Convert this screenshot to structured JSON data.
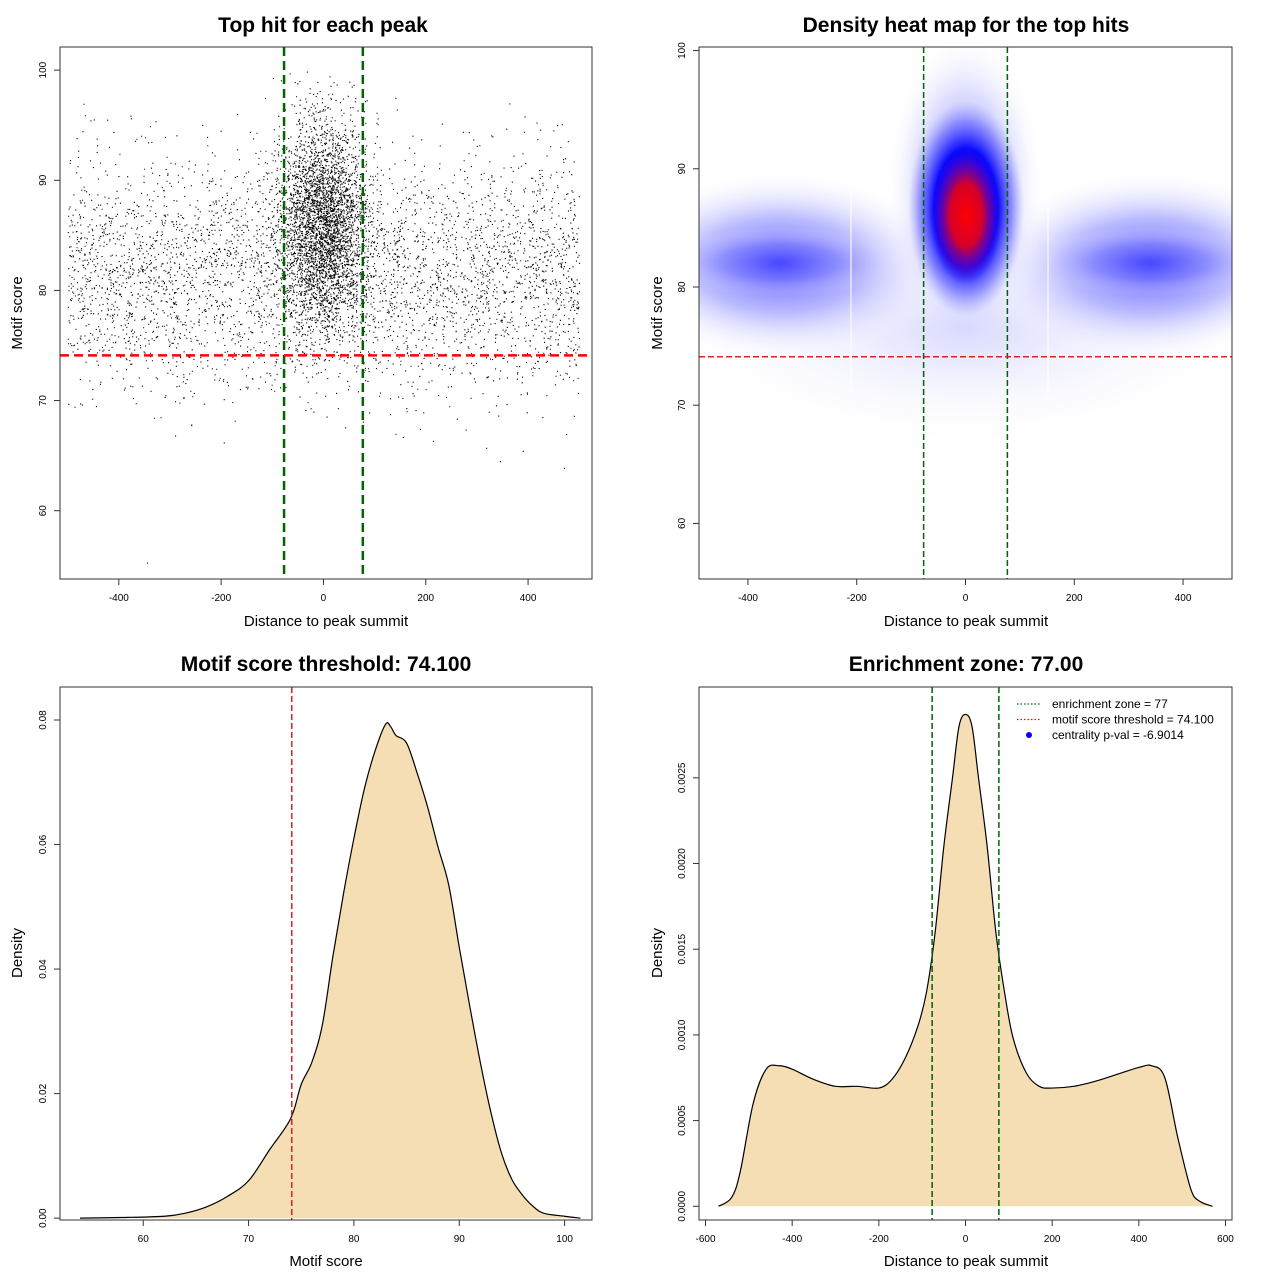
{
  "chart_data": [
    {
      "id": "scatter",
      "type": "scatter",
      "title": "Top hit for each peak",
      "xlabel": "Distance to peak summit",
      "ylabel": "Motif score",
      "xlim": [
        -515,
        525
      ],
      "ylim": [
        53.8,
        102.1
      ],
      "xticks": [
        -400,
        -200,
        0,
        200,
        400
      ],
      "yticks": [
        60,
        70,
        80,
        90,
        100
      ],
      "enrichment_zone": [
        -77,
        77
      ],
      "threshold": 74.1,
      "point_color": "#000000",
      "description_of_points": {
        "n_background": 19000,
        "n_center": 6500,
        "x_range": [
          -500,
          500
        ]
      },
      "outliers": [
        {
          "x": -345,
          "y": 55.3
        },
        {
          "x": -195,
          "y": 66.2
        },
        {
          "x": 155,
          "y": 66.7
        },
        {
          "x": 345,
          "y": 64.5
        },
        {
          "x": 470,
          "y": 63.9
        }
      ]
    },
    {
      "id": "heatmap",
      "type": "heatmap",
      "title": "Density heat map for the top hits",
      "xlabel": "Distance to peak summit",
      "ylabel": "Motif score",
      "xlim": [
        -490,
        490
      ],
      "ylim": [
        55.3,
        100.3
      ],
      "xticks": [
        -400,
        -200,
        0,
        200,
        400
      ],
      "yticks": [
        60,
        70,
        80,
        90,
        100
      ],
      "enrichment_zone": [
        -77,
        77
      ],
      "threshold": 74.1,
      "colors": [
        "#ffffff",
        "#0000ff",
        "#ff0000"
      ]
    },
    {
      "id": "score_density",
      "type": "area",
      "title": "Motif score threshold: 74.100",
      "xlabel": "Motif score",
      "ylabel": "Density",
      "xlim": [
        52.1,
        102.6
      ],
      "ylim": [
        -0.0003,
        0.0853
      ],
      "xticks": [
        60,
        70,
        80,
        90,
        100
      ],
      "yticks": [
        0.0,
        0.02,
        0.04,
        0.06,
        0.08
      ],
      "ytick_labels": [
        "0.00",
        "0.02",
        "0.04",
        "0.06",
        "0.08"
      ],
      "threshold": 74.1,
      "fill": "#f5deb3",
      "x": [
        54,
        58,
        62,
        64,
        66,
        68,
        70,
        72,
        74,
        75,
        76,
        77,
        78,
        79,
        80,
        81,
        82,
        83,
        83.5,
        84,
        85,
        86,
        87,
        88,
        89,
        90,
        91,
        92,
        93,
        94,
        95,
        96,
        97,
        98,
        100,
        101.5
      ],
      "y": [
        0.0,
        0.0001,
        0.0003,
        0.0008,
        0.0018,
        0.0035,
        0.006,
        0.011,
        0.016,
        0.0215,
        0.025,
        0.031,
        0.042,
        0.052,
        0.061,
        0.069,
        0.075,
        0.0793,
        0.0789,
        0.0775,
        0.0763,
        0.0715,
        0.066,
        0.0595,
        0.0535,
        0.0435,
        0.034,
        0.025,
        0.017,
        0.0105,
        0.0062,
        0.0037,
        0.0019,
        0.0008,
        0.0003,
        0.0
      ]
    },
    {
      "id": "distance_density",
      "type": "area",
      "title": "Enrichment zone: 77.00",
      "xlabel": "Distance to peak summit",
      "ylabel": "Density",
      "xlim": [
        -615,
        615
      ],
      "ylim": [
        -8e-05,
        0.00303
      ],
      "xticks": [
        -600,
        -400,
        -200,
        0,
        200,
        400,
        600
      ],
      "yticks": [
        0.0,
        0.0005,
        0.001,
        0.0015,
        0.002,
        0.0025
      ],
      "ytick_labels": [
        "0.0000",
        "0.0005",
        "0.0010",
        "0.0015",
        "0.0020",
        "0.0025"
      ],
      "enrichment_zone": [
        -77,
        77
      ],
      "fill": "#f5deb3",
      "x": [
        -570,
        -540,
        -520,
        -490,
        -460,
        -430,
        -400,
        -350,
        -300,
        -250,
        -200,
        -170,
        -140,
        -110,
        -90,
        -70,
        -50,
        -30,
        -15,
        0,
        15,
        30,
        50,
        70,
        90,
        110,
        140,
        170,
        200,
        250,
        300,
        350,
        400,
        430,
        460,
        490,
        520,
        540,
        570
      ],
      "y": [
        0.0,
        5e-05,
        0.0002,
        0.0006,
        0.0008,
        0.00082,
        0.0008,
        0.00074,
        0.0007,
        0.0007,
        0.00069,
        0.00074,
        0.00086,
        0.00105,
        0.00125,
        0.0016,
        0.0021,
        0.0025,
        0.0028,
        0.00287,
        0.0028,
        0.0025,
        0.0021,
        0.0016,
        0.00125,
        0.00098,
        0.00078,
        0.0007,
        0.00069,
        0.0007,
        0.00073,
        0.00077,
        0.00081,
        0.00082,
        0.00075,
        0.0004,
        0.0001,
        3e-05,
        0.0
      ],
      "legend": {
        "position": "top-right",
        "items": [
          {
            "label": "enrichment zone = 77",
            "color": "#006400",
            "style": "dotted-line"
          },
          {
            "label": "motif score threshold = 74.100",
            "color": "#ff0000",
            "style": "dotted-line"
          },
          {
            "label": "centrality p-val = -6.9014",
            "color": "#0000ff",
            "style": "point"
          }
        ]
      }
    }
  ]
}
